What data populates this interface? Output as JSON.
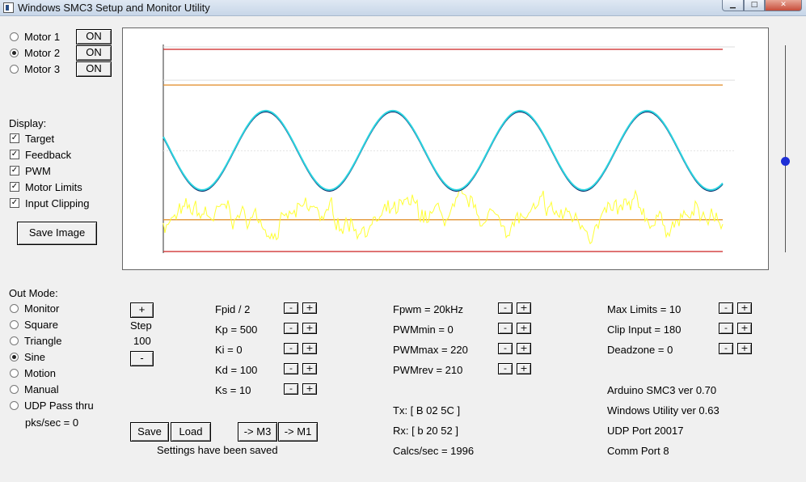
{
  "window": {
    "title": "Windows SMC3 Setup and Monitor Utility",
    "min_glyph": "▁",
    "max_glyph": "□",
    "close_glyph": "✕"
  },
  "motors": [
    {
      "label": "Motor 1",
      "selected": false,
      "button": "ON"
    },
    {
      "label": "Motor 2",
      "selected": true,
      "button": "ON"
    },
    {
      "label": "Motor 3",
      "selected": false,
      "button": "ON"
    }
  ],
  "display": {
    "heading": "Display:",
    "items": [
      {
        "label": "Target",
        "checked": true
      },
      {
        "label": "Feedback",
        "checked": true
      },
      {
        "label": "PWM",
        "checked": true
      },
      {
        "label": "Motor Limits",
        "checked": true
      },
      {
        "label": "Input Clipping",
        "checked": true
      }
    ],
    "check_glyph": "✓",
    "save_image": "Save Image"
  },
  "out_mode": {
    "heading": "Out Mode:",
    "options": [
      {
        "label": "Monitor",
        "selected": false
      },
      {
        "label": "Square",
        "selected": false
      },
      {
        "label": "Triangle",
        "selected": false
      },
      {
        "label": "Sine",
        "selected": true
      },
      {
        "label": "Motion",
        "selected": false
      },
      {
        "label": "Manual",
        "selected": false
      },
      {
        "label": "UDP Pass thru",
        "selected": false
      }
    ],
    "pks": "pks/sec = 0"
  },
  "step": {
    "plus": "+",
    "label": "Step",
    "value": "100",
    "minus": "-"
  },
  "pid": [
    {
      "label": "Fpid / 2"
    },
    {
      "label": "Kp = 500"
    },
    {
      "label": "Ki = 0"
    },
    {
      "label": "Kd = 100"
    },
    {
      "label": "Ks = 10"
    }
  ],
  "pwm": [
    {
      "label": "Fpwm = 20kHz"
    },
    {
      "label": "PWMmin = 0"
    },
    {
      "label": "PWMmax = 220"
    },
    {
      "label": "PWMrev = 210"
    }
  ],
  "limits": [
    {
      "label": "Max Limits = 10"
    },
    {
      "label": "Clip Input = 180"
    },
    {
      "label": "Deadzone = 0"
    }
  ],
  "pm_minus": "-",
  "pm_plus": "+",
  "comms": {
    "tx": "Tx: [ B 02 5C ]",
    "rx": "Rx: [ b 20 52 ]",
    "calcs": "Calcs/sec = 1996"
  },
  "info": {
    "arduino": "Arduino SMC3 ver 0.70",
    "utility": "Windows Utility ver 0.63",
    "udp": "UDP Port 20017",
    "comm": "Comm Port 8"
  },
  "actions": {
    "save": "Save",
    "load": "Load",
    "to_m3": "-> M3",
    "to_m1": "-> M1",
    "status": "Settings have been saved"
  },
  "colors": {
    "target": "#2bd4e0",
    "feedback": "#0a2a6a",
    "pwm": "#ffff33",
    "motor_limits": "#cc2222",
    "input_clipping": "#e08a20",
    "slider_thumb": "#1e2fd6"
  },
  "chart_data": {
    "type": "line",
    "title": "",
    "xlabel": "",
    "ylabel": "",
    "ylim": [
      0,
      255
    ],
    "grid": false,
    "series": [
      {
        "shape": "sine",
        "cycles": 4.4,
        "center": 127,
        "amplitude": 50,
        "phase_deg": 160
      },
      {
        "shape": "sine",
        "cycles": 4.4,
        "center": 127,
        "amplitude": 50,
        "phase_deg": 160
      },
      {
        "shape": "noise",
        "mean": 40,
        "spread": 22,
        "min": 0,
        "max": 85
      }
    ],
    "hlines": [
      {
        "y": 255
      },
      {
        "y": 210
      },
      {
        "y": 40
      },
      {
        "y": 0
      }
    ]
  },
  "slider": {
    "value": 0.56
  }
}
